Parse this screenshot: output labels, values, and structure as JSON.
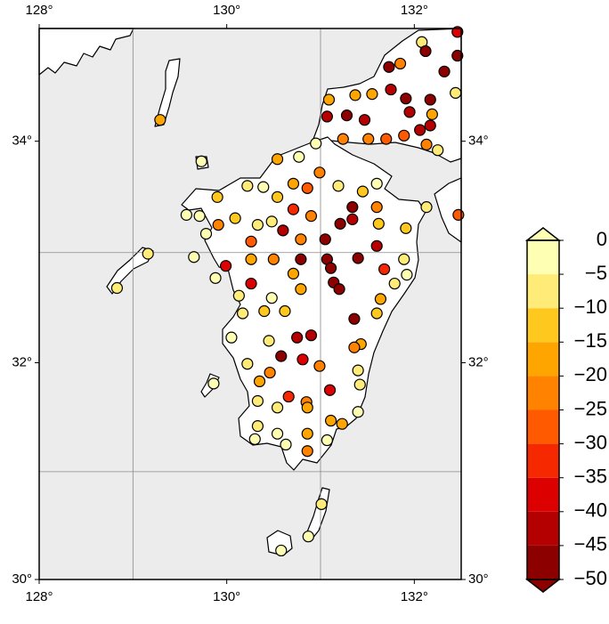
{
  "chart_data": {
    "type": "scatter",
    "xlim": [
      128,
      132.5
    ],
    "ylim": [
      30,
      35
    ],
    "projection": "mercator",
    "xticks": [
      {
        "value": 128,
        "label": "128°"
      },
      {
        "value": 130,
        "label": "130°"
      },
      {
        "value": 132,
        "label": "132°"
      }
    ],
    "yticks": [
      {
        "value": 30,
        "label": "30°"
      },
      {
        "value": 32,
        "label": "32°"
      },
      {
        "value": 34,
        "label": "34°"
      }
    ],
    "xgrid": [
      129,
      131
    ],
    "ygrid": [
      31,
      33
    ],
    "grid": true,
    "ocean_color": "#ececec",
    "land_color": "#ffffff",
    "colorbar": {
      "bounds": [
        -50,
        -45,
        -40,
        -35,
        -30,
        -25,
        -20,
        -15,
        -10,
        -5,
        0
      ],
      "colors": [
        "#8c0000",
        "#b40000",
        "#dc0000",
        "#f52800",
        "#ff5a00",
        "#ff8200",
        "#ffa500",
        "#ffc81e",
        "#ffeb78",
        "#ffffb4"
      ],
      "ticks": [
        0,
        {
          "value": -5,
          "label": "−5"
        },
        {
          "value": -10,
          "label": "−10"
        },
        {
          "value": -15,
          "label": "−15"
        },
        {
          "value": -20,
          "label": "−20"
        },
        {
          "value": -25,
          "label": "−25"
        },
        {
          "value": -30,
          "label": "−30"
        },
        {
          "value": -35,
          "label": "−35"
        },
        {
          "value": -40,
          "label": "−40"
        },
        {
          "value": -45,
          "label": "−45"
        },
        {
          "value": -50,
          "label": "−50"
        }
      ],
      "extend": "both"
    },
    "series": [
      {
        "x": [
          131.07,
          131.09,
          131.28,
          131.47,
          131.37,
          131.55,
          131.75,
          131.73,
          131.85,
          131.91,
          131.95,
          132.08,
          132.12,
          132.17,
          132.19,
          132.06,
          132.17,
          132.32,
          132.44,
          132.46,
          132.46,
          132.25,
          132.13,
          131.89,
          131.7,
          131.51,
          131.24,
          132.13,
          132.47,
          130.95,
          130.77,
          130.54,
          130.39,
          130.22,
          129.9,
          129.73,
          129.29,
          130.71,
          130.86,
          130.99,
          131.19,
          131.45,
          131.6,
          130.54,
          130.71,
          130.9,
          130.48,
          130.33,
          130.09,
          129.91,
          129.57,
          129.71,
          129.78,
          129.65,
          129.16,
          128.83,
          129.88,
          129.99,
          130.26,
          130.6,
          130.79,
          131.05,
          131.21,
          131.34,
          131.34,
          131.6,
          131.62,
          131.6,
          131.91,
          130.26,
          130.5,
          130.79,
          131.07,
          131.11,
          131.4,
          131.14,
          131.2,
          131.68,
          131.89,
          131.92,
          131.79,
          131.64,
          131.6,
          131.36,
          130.26,
          130.13,
          130.17,
          130.48,
          130.4,
          130.62,
          130.79,
          130.71,
          130.05,
          130.45,
          130.75,
          130.9,
          131.43,
          131.36,
          130.22,
          130.58,
          130.81,
          130.99,
          131.4,
          131.42,
          130.35,
          130.46,
          129.86,
          131.1,
          130.66,
          130.85,
          130.86,
          130.54,
          130.33,
          131.4,
          131.11,
          131.23,
          130.33,
          130.54,
          130.63,
          130.3,
          130.86,
          131.07,
          130.86,
          131.01,
          130.87,
          130.58
        ],
        "y": [
          34.22,
          34.37,
          34.23,
          34.19,
          34.41,
          34.42,
          34.46,
          34.66,
          34.69,
          34.38,
          34.26,
          34.88,
          34.8,
          34.37,
          34.24,
          34.1,
          34.14,
          34.62,
          34.43,
          34.97,
          34.76,
          33.92,
          33.97,
          34.05,
          34.02,
          34.02,
          34.02,
          33.41,
          33.34,
          33.98,
          33.86,
          33.84,
          33.59,
          33.6,
          33.5,
          33.82,
          34.19,
          33.62,
          33.58,
          33.72,
          33.6,
          33.55,
          33.62,
          33.5,
          33.39,
          33.33,
          33.28,
          33.25,
          33.31,
          33.25,
          33.34,
          33.33,
          33.17,
          32.96,
          32.99,
          32.68,
          32.77,
          32.88,
          33.1,
          33.2,
          33.12,
          33.12,
          33.26,
          33.3,
          33.41,
          33.41,
          33.26,
          33.06,
          33.22,
          32.94,
          32.94,
          32.94,
          32.94,
          32.86,
          32.95,
          32.73,
          32.67,
          32.85,
          32.94,
          32.8,
          32.72,
          32.58,
          32.45,
          32.4,
          32.72,
          32.61,
          32.45,
          32.59,
          32.47,
          32.47,
          32.67,
          32.81,
          32.23,
          32.2,
          32.23,
          32.25,
          32.17,
          32.14,
          31.99,
          32.06,
          32.03,
          31.97,
          31.93,
          31.8,
          31.83,
          31.91,
          31.81,
          31.75,
          31.69,
          31.64,
          31.59,
          31.59,
          31.65,
          31.55,
          31.47,
          31.44,
          31.42,
          31.35,
          31.25,
          31.3,
          31.35,
          31.29,
          31.19,
          30.7,
          30.4,
          30.27
        ],
        "values": [
          -45,
          -20,
          -47,
          -43,
          -18,
          -17,
          -45,
          -47,
          -21,
          -48,
          -45,
          -6,
          -47,
          -47,
          -16,
          -45,
          -43,
          -48,
          -8,
          -40,
          -47,
          -8,
          -22,
          -27,
          -27,
          -22,
          -22,
          -7,
          -30,
          -3,
          -5,
          -18,
          -3,
          -8,
          -12,
          -3,
          -17,
          -20,
          -28,
          -24,
          -8,
          -13,
          -4,
          -12,
          -35,
          -24,
          -10,
          -6,
          -14,
          -22,
          -3,
          -4,
          -5,
          -4,
          -6,
          -8,
          -3,
          -40,
          -28,
          -45,
          -22,
          -47,
          -47,
          -45,
          -47,
          -25,
          -12,
          -45,
          -11,
          -20,
          -25,
          -47,
          -47,
          -47,
          -47,
          -47,
          -47,
          -35,
          -10,
          -5,
          -7,
          -20,
          -11,
          -47,
          -40,
          -7,
          -10,
          -5,
          -12,
          -12,
          -20,
          -20,
          -5,
          -8,
          -42,
          -45,
          -18,
          -22,
          -6,
          -47,
          -40,
          -22,
          -7,
          -7,
          -20,
          -22,
          -4,
          -40,
          -35,
          -25,
          -20,
          -10,
          -10,
          -5,
          -18,
          -20,
          -8,
          -3,
          -5,
          -3,
          -20,
          -5,
          -25,
          -7,
          -5,
          -3
        ]
      }
    ]
  }
}
